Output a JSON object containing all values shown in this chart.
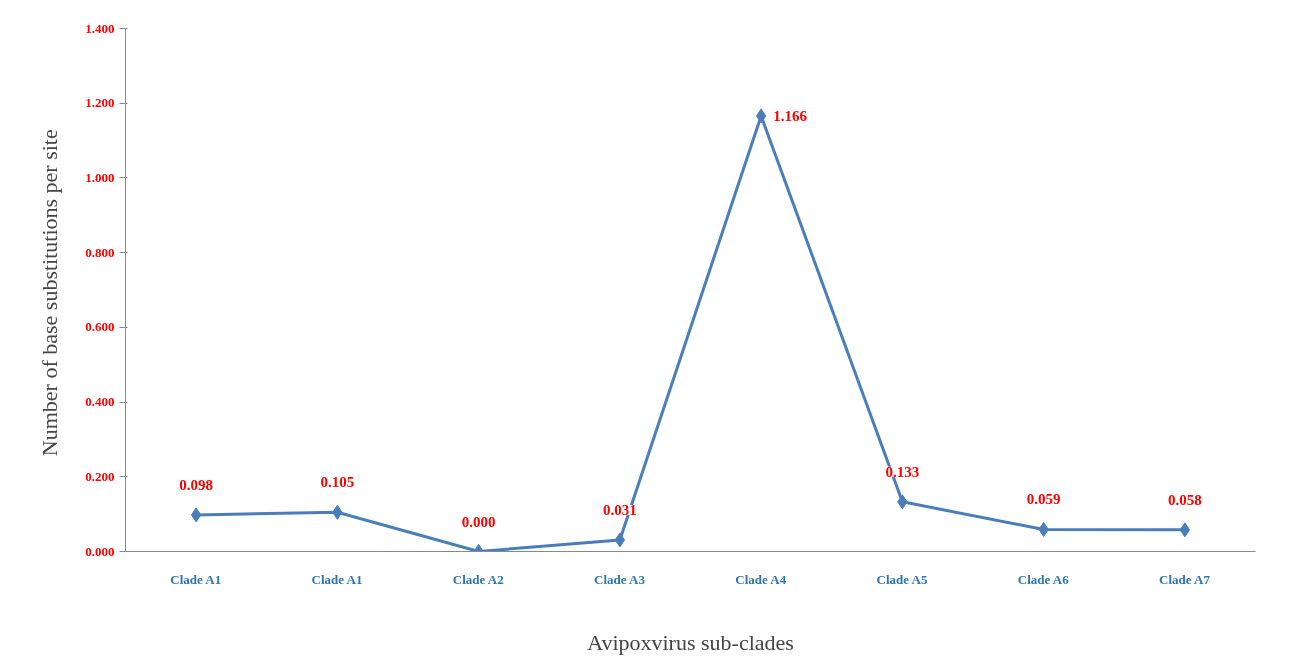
{
  "chart_data": {
    "type": "line",
    "xlabel": "Avipoxvirus sub-clades",
    "ylabel": "Number of base substitutions  per site",
    "categories": [
      "Clade A1",
      "Clade A1",
      "Clade A2",
      "Clade A3",
      "Clade A4",
      "Clade A5",
      "Clade A6",
      "Clade A7"
    ],
    "series": [
      {
        "color": "#4a7ebb",
        "values": [
          0.098,
          0.105,
          0.0,
          0.031,
          1.166,
          0.133,
          0.059,
          0.058
        ],
        "value_labels": [
          "0.098",
          "0.105",
          "0.000",
          "0.031",
          "1.166",
          "0.133",
          "0.059",
          "0.058"
        ]
      }
    ],
    "ylim": [
      0,
      1.4
    ],
    "yticks": [
      {
        "value": 0,
        "label": "0.000"
      },
      {
        "value": 0.2,
        "label": "0.200"
      },
      {
        "value": 0.4,
        "label": "0.400"
      },
      {
        "value": 0.6,
        "label": "0.600"
      },
      {
        "value": 0.8,
        "label": "0.800"
      },
      {
        "value": 1.0,
        "label": "1.000"
      },
      {
        "value": 1.2,
        "label": "1.200"
      },
      {
        "value": 1.4,
        "label": "1.400"
      }
    ],
    "grid": false,
    "marker": "diamond",
    "line_style": "solid"
  }
}
